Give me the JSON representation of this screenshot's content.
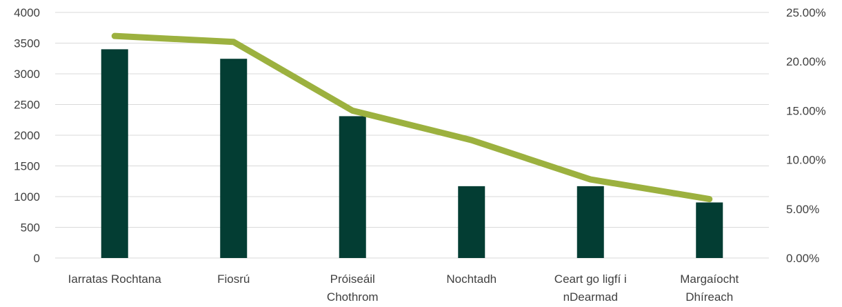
{
  "chart_data": {
    "type": "bar",
    "categories": [
      [
        "Iarratas Rochtana"
      ],
      [
        "Fiosrú"
      ],
      [
        "Próiseáil",
        "Chothrom"
      ],
      [
        "Nochtadh"
      ],
      [
        "Ceart go ligfí i",
        "nDearmad"
      ],
      [
        "Margaíocht",
        "Dhíreach"
      ]
    ],
    "series": [
      {
        "type": "bar",
        "axis": "left",
        "color": "#033d33",
        "values": [
          3400,
          3245,
          2310,
          1170,
          1170,
          905
        ]
      },
      {
        "type": "line",
        "axis": "right",
        "color": "#9cb13f",
        "values": [
          0.226,
          0.22,
          0.15,
          0.12,
          0.08,
          0.06
        ]
      }
    ],
    "y_left": {
      "min": 0,
      "max": 4000,
      "step": 500,
      "ticks": [
        "0",
        "500",
        "1000",
        "1500",
        "2000",
        "2500",
        "3000",
        "3500",
        "4000"
      ]
    },
    "y_right": {
      "min": 0,
      "max": 0.25,
      "step": 0.05,
      "ticks": [
        "0.00%",
        "5.00%",
        "10.00%",
        "15.00%",
        "20.00%",
        "25.00%"
      ]
    },
    "grid": true,
    "legend": "none"
  }
}
